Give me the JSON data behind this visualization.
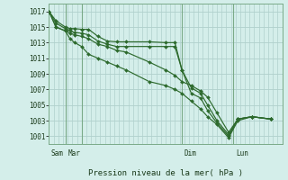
{
  "background_color": "#d4eeea",
  "grid_color": "#b0d0cc",
  "line_color": "#2d6a2d",
  "title": "Pression niveau de la mer( hPa )",
  "ylim": [
    1000,
    1018
  ],
  "yticks": [
    1001,
    1003,
    1005,
    1007,
    1009,
    1011,
    1013,
    1015,
    1017
  ],
  "xlim": [
    0,
    100
  ],
  "vlines": [
    7,
    14,
    57,
    79
  ],
  "day_labels": [
    {
      "x": 1,
      "label": "Sam"
    },
    {
      "x": 8,
      "label": "Mar"
    },
    {
      "x": 58,
      "label": "Dim"
    },
    {
      "x": 80,
      "label": "Lun"
    }
  ],
  "series": [
    {
      "x": [
        0,
        3,
        7,
        9,
        11,
        14,
        17,
        21,
        25,
        29,
        33,
        43,
        50,
        54,
        57,
        61,
        65,
        68,
        72,
        77,
        81,
        87,
        95
      ],
      "y": [
        1017,
        1015.8,
        1015.0,
        1014.8,
        1014.8,
        1014.7,
        1014.7,
        1013.8,
        1013.2,
        1013.1,
        1013.1,
        1013.1,
        1013.0,
        1013.0,
        1009.5,
        1006.5,
        1005.9,
        1004.3,
        1002.7,
        1001.0,
        1003.2,
        1003.5,
        1003.2
      ]
    },
    {
      "x": [
        0,
        3,
        7,
        9,
        11,
        14,
        17,
        21,
        25,
        29,
        33,
        43,
        50,
        54,
        57,
        61,
        65,
        68,
        72,
        77,
        81,
        87,
        95
      ],
      "y": [
        1017,
        1015.5,
        1014.8,
        1014.5,
        1014.3,
        1014.2,
        1014.0,
        1013.2,
        1012.8,
        1012.5,
        1012.5,
        1012.5,
        1012.5,
        1012.5,
        1009.5,
        1007.2,
        1006.5,
        1005.0,
        1003.0,
        1001.2,
        1003.2,
        1003.5,
        1003.2
      ]
    },
    {
      "x": [
        0,
        3,
        7,
        9,
        11,
        14,
        17,
        21,
        25,
        29,
        33,
        43,
        50,
        54,
        57,
        61,
        65,
        68,
        72,
        77,
        81,
        87,
        95
      ],
      "y": [
        1017,
        1015.0,
        1014.5,
        1014.2,
        1014.0,
        1013.8,
        1013.5,
        1012.8,
        1012.5,
        1012.0,
        1011.8,
        1010.5,
        1009.5,
        1008.8,
        1008.0,
        1007.5,
        1006.8,
        1006.0,
        1004.0,
        1001.5,
        1003.2,
        1003.5,
        1003.2
      ]
    },
    {
      "x": [
        0,
        3,
        7,
        9,
        11,
        14,
        17,
        21,
        25,
        29,
        33,
        43,
        50,
        54,
        57,
        61,
        65,
        68,
        72,
        77,
        81,
        87,
        95
      ],
      "y": [
        1017,
        1015.0,
        1014.5,
        1013.5,
        1013.0,
        1012.5,
        1011.5,
        1011.0,
        1010.5,
        1010.0,
        1009.5,
        1008.0,
        1007.5,
        1007.0,
        1006.5,
        1005.5,
        1004.5,
        1003.5,
        1002.5,
        1000.8,
        1003.0,
        1003.5,
        1003.2
      ]
    }
  ]
}
